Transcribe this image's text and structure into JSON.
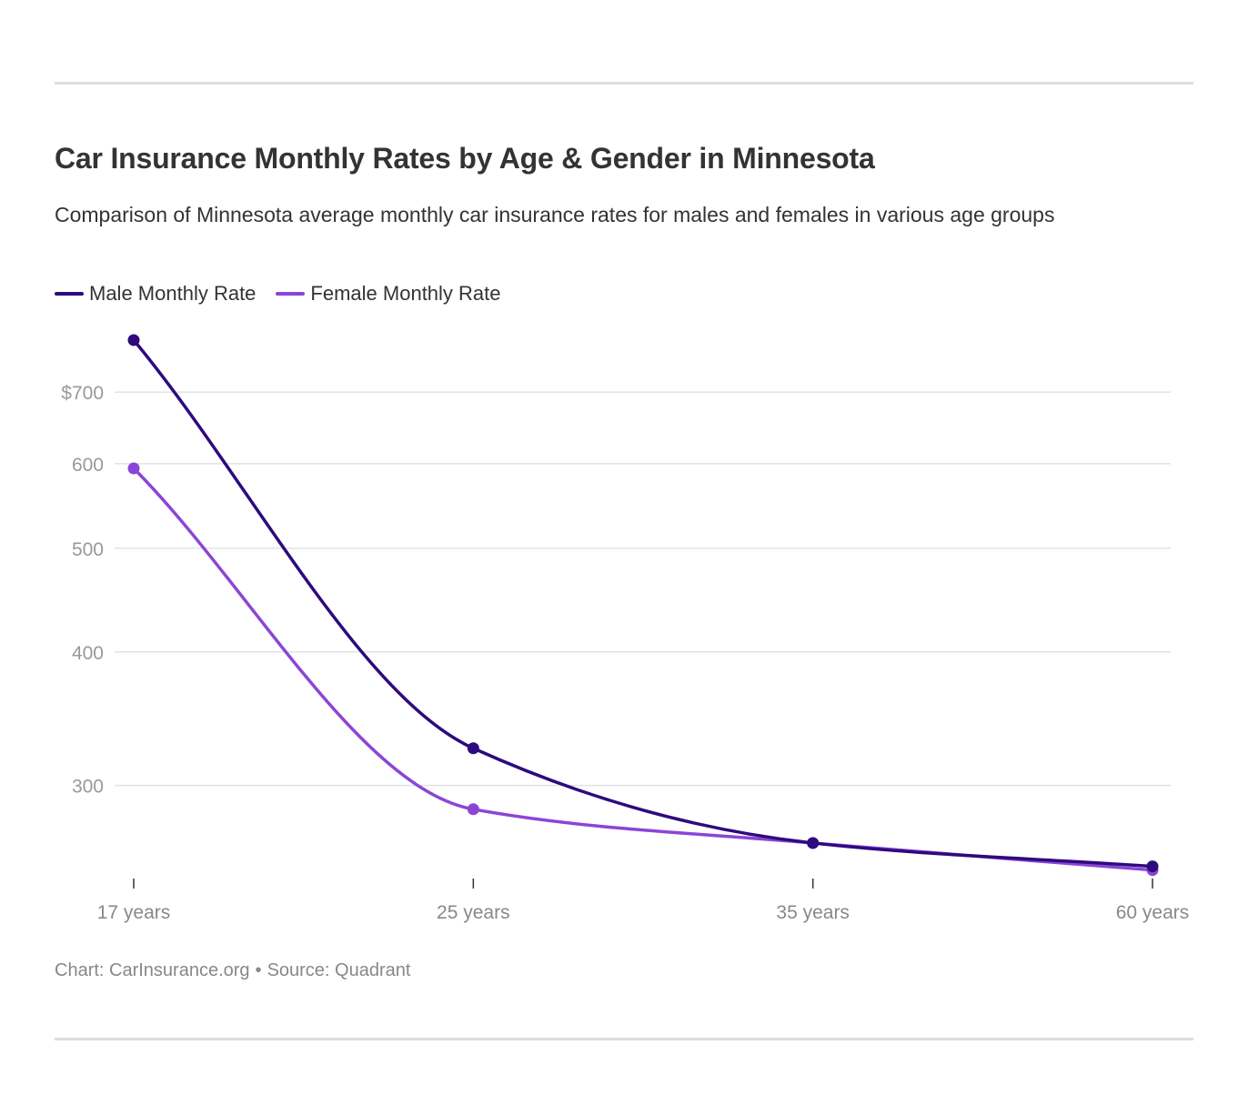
{
  "header": {
    "title": "Car Insurance Monthly Rates by Age & Gender in Minnesota",
    "subtitle": "Comparison of Minnesota average monthly car insurance rates for males and females in various age groups"
  },
  "footer": {
    "chart_credit": "Chart: CarInsurance.org",
    "separator": "•",
    "source": "Source: Quadrant"
  },
  "colors": {
    "male": "#2e0a7e",
    "female": "#8b45d6",
    "grid": "#e3e3e3",
    "axis_text": "#999999"
  },
  "chart_data": {
    "type": "line",
    "scale": "log",
    "categories": [
      "17 years",
      "25 years",
      "35 years",
      "60 years"
    ],
    "series": [
      {
        "name": "Male Monthly Rate",
        "values": [
          783,
          325,
          265,
          252
        ]
      },
      {
        "name": "Female Monthly Rate",
        "values": [
          594,
          285,
          265,
          250
        ]
      }
    ],
    "y_ticks": [
      {
        "value": 300,
        "label": "300"
      },
      {
        "value": 400,
        "label": "400"
      },
      {
        "value": 500,
        "label": "500"
      },
      {
        "value": 600,
        "label": "600"
      },
      {
        "value": 700,
        "label": "$700"
      }
    ],
    "ylim": [
      245,
      800
    ],
    "grid": true,
    "legend_position": "top-left"
  }
}
